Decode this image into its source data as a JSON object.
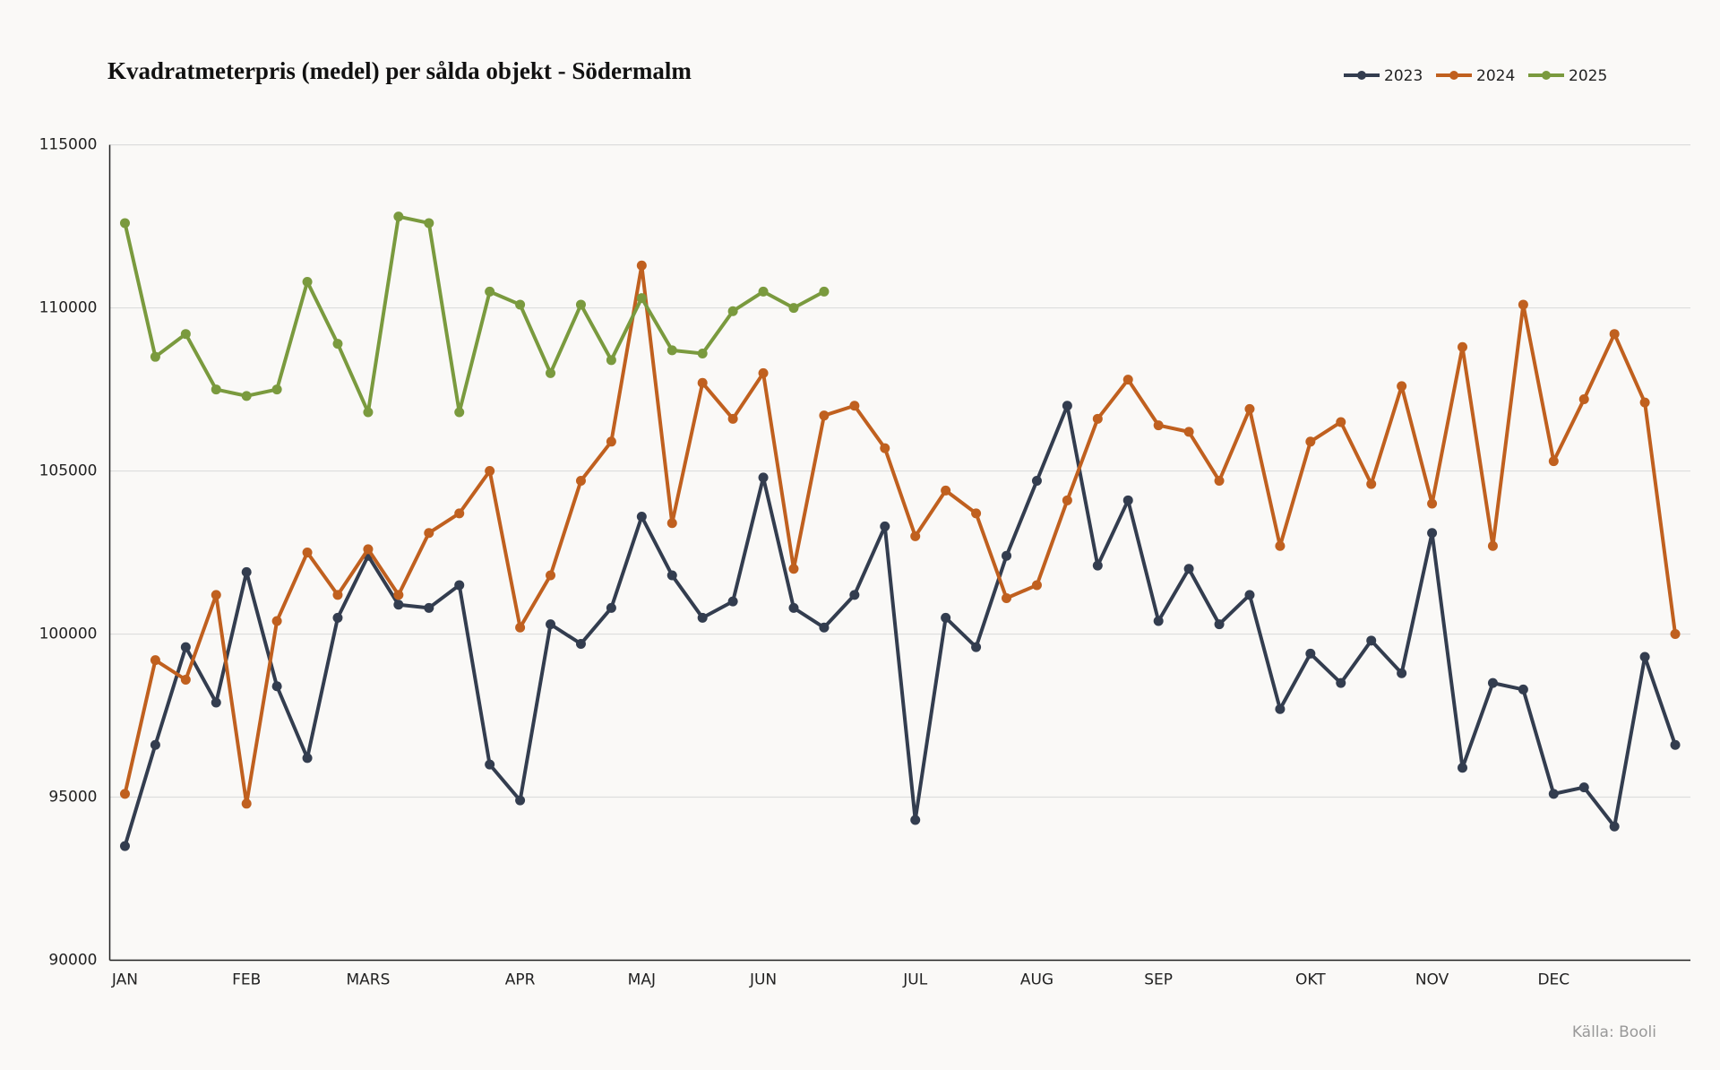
{
  "chart_data": {
    "type": "line",
    "title": "Kvadratmeterpris (medel) per sålda objekt - Södermalm",
    "source": "Källa: Booli",
    "legend": "top-right",
    "grid": true,
    "categories": [
      "JAN",
      null,
      null,
      null,
      "FEB",
      null,
      null,
      null,
      "MARS",
      null,
      null,
      null,
      null,
      "APR",
      null,
      null,
      null,
      "MAJ",
      null,
      null,
      null,
      "JUN",
      null,
      null,
      null,
      null,
      "JUL",
      null,
      null,
      null,
      "AUG",
      null,
      null,
      null,
      "SEP",
      null,
      null,
      null,
      null,
      "OKT",
      null,
      null,
      null,
      "NOV",
      null,
      null,
      null,
      "DEC",
      null,
      null,
      null,
      null
    ],
    "ylim": [
      90000,
      115000
    ],
    "yticks": [
      90000,
      95000,
      100000,
      105000,
      110000,
      115000
    ],
    "series": [
      {
        "name": "2023",
        "color": "#333d4f",
        "values": [
          93500,
          96600,
          99600,
          97900,
          101900,
          98400,
          96200,
          100500,
          102400,
          100900,
          100800,
          101500,
          96000,
          94900,
          100300,
          99700,
          100800,
          103600,
          101800,
          100500,
          101000,
          104800,
          100800,
          100200,
          101200,
          103300,
          94300,
          100500,
          99600,
          102400,
          104700,
          107000,
          102100,
          104100,
          100400,
          102000,
          100300,
          101200,
          97700,
          99400,
          98500,
          99800,
          98800,
          103100,
          95900,
          98500,
          98300,
          95100,
          95300,
          94100,
          99300,
          96600
        ]
      },
      {
        "name": "2024",
        "color": "#c0601f",
        "values": [
          95100,
          99200,
          98600,
          101200,
          94800,
          100400,
          102500,
          101200,
          102600,
          101200,
          103100,
          103700,
          105000,
          100200,
          101800,
          104700,
          105900,
          111300,
          103400,
          107700,
          106600,
          108000,
          102000,
          106700,
          107000,
          105700,
          103000,
          104400,
          103700,
          101100,
          101500,
          104100,
          106600,
          107800,
          106400,
          106200,
          104700,
          106900,
          102700,
          105900,
          106500,
          104600,
          107600,
          104000,
          108800,
          102700,
          110100,
          105300,
          107200,
          109200,
          107100,
          100000
        ]
      },
      {
        "name": "2025",
        "color": "#7a9a3e",
        "values": [
          112600,
          108500,
          109200,
          107500,
          107300,
          107500,
          110800,
          108900,
          106800,
          112800,
          112600,
          106800,
          110500,
          110100,
          108000,
          110100,
          108400,
          110300,
          108700,
          108600,
          109900,
          110500,
          110000,
          110500,
          null,
          null,
          null,
          null,
          null,
          null,
          null,
          null,
          null,
          null,
          null,
          null,
          null,
          null,
          null,
          null,
          null,
          null,
          null,
          null,
          null,
          null,
          null,
          null,
          null,
          null,
          null,
          null
        ]
      }
    ]
  }
}
